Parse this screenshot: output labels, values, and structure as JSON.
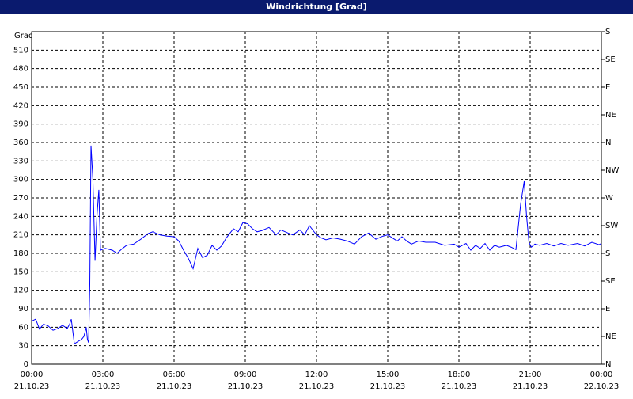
{
  "chart_data": {
    "type": "line",
    "title": "Windrichtung [Grad]",
    "y_label": "Grad",
    "x": [
      0,
      0.17,
      0.33,
      0.5,
      0.7,
      0.9,
      1.1,
      1.3,
      1.5,
      1.6,
      1.67,
      1.8,
      2.0,
      2.1,
      2.2,
      2.3,
      2.35,
      2.4,
      2.45,
      2.5,
      2.58,
      2.67,
      2.75,
      2.83,
      2.9,
      3.1,
      3.4,
      3.6,
      3.8,
      4.0,
      4.3,
      4.6,
      4.9,
      5.1,
      5.4,
      5.7,
      6.0,
      6.2,
      6.4,
      6.6,
      6.8,
      7.0,
      7.2,
      7.4,
      7.6,
      7.8,
      8.0,
      8.2,
      8.5,
      8.7,
      8.9,
      9.1,
      9.3,
      9.5,
      9.7,
      10.0,
      10.3,
      10.5,
      10.8,
      11.0,
      11.3,
      11.5,
      11.7,
      12.0,
      12.2,
      12.4,
      12.7,
      13.0,
      13.3,
      13.6,
      13.9,
      14.2,
      14.5,
      14.8,
      15.0,
      15.2,
      15.4,
      15.6,
      15.8,
      16.0,
      16.3,
      16.6,
      17.0,
      17.4,
      17.8,
      18.0,
      18.3,
      18.5,
      18.7,
      18.9,
      19.1,
      19.3,
      19.5,
      19.7,
      20.0,
      20.2,
      20.4,
      20.6,
      20.75,
      20.85,
      20.95,
      21.05,
      21.2,
      21.4,
      21.7,
      22.0,
      22.3,
      22.6,
      23.0,
      23.3,
      23.6,
      23.9,
      24
    ],
    "series": [
      {
        "name": "Windrichtung",
        "color": "#0000ff",
        "values": [
          70,
          73,
          57,
          65,
          62,
          55,
          58,
          63,
          58,
          65,
          73,
          33,
          38,
          40,
          45,
          60,
          40,
          35,
          130,
          355,
          300,
          168,
          240,
          283,
          185,
          188,
          185,
          180,
          187,
          193,
          195,
          203,
          212,
          215,
          210,
          208,
          207,
          200,
          185,
          172,
          155,
          188,
          173,
          177,
          193,
          185,
          192,
          205,
          220,
          215,
          230,
          228,
          220,
          215,
          217,
          222,
          210,
          218,
          213,
          210,
          218,
          210,
          225,
          210,
          205,
          202,
          205,
          203,
          200,
          195,
          207,
          213,
          203,
          208,
          210,
          205,
          200,
          207,
          200,
          195,
          200,
          198,
          198,
          193,
          195,
          190,
          196,
          185,
          193,
          188,
          196,
          185,
          193,
          190,
          193,
          190,
          186,
          260,
          297,
          240,
          198,
          190,
          195,
          193,
          196,
          192,
          196,
          193,
          196,
          192,
          198,
          194,
          196
        ]
      }
    ],
    "xlim": [
      0,
      24
    ],
    "xticks": [
      {
        "value": 0,
        "label": "00:00"
      },
      {
        "value": 3,
        "label": "03:00"
      },
      {
        "value": 6,
        "label": "06:00"
      },
      {
        "value": 9,
        "label": "09:00"
      },
      {
        "value": 12,
        "label": "12:00"
      },
      {
        "value": 15,
        "label": "15:00"
      },
      {
        "value": 18,
        "label": "18:00"
      },
      {
        "value": 21,
        "label": "21:00"
      },
      {
        "value": 24,
        "label": "00:00"
      }
    ],
    "xtick_dates": [
      "21.10.23",
      "21.10.23",
      "21.10.23",
      "21.10.23",
      "21.10.23",
      "21.10.23",
      "21.10.23",
      "21.10.23",
      "22.10.23"
    ],
    "ylim": [
      0,
      540
    ],
    "yticks": [
      0,
      30,
      60,
      90,
      120,
      150,
      180,
      210,
      240,
      270,
      300,
      330,
      360,
      390,
      420,
      450,
      480,
      510
    ],
    "y2lim": [
      0,
      540
    ],
    "y2ticks": [
      {
        "value": 0,
        "label": "N"
      },
      {
        "value": 45,
        "label": "NE"
      },
      {
        "value": 90,
        "label": "E"
      },
      {
        "value": 135,
        "label": "SE"
      },
      {
        "value": 180,
        "label": "S"
      },
      {
        "value": 225,
        "label": "SW"
      },
      {
        "value": 270,
        "label": "W"
      },
      {
        "value": 315,
        "label": "NW"
      },
      {
        "value": 360,
        "label": "N"
      },
      {
        "value": 405,
        "label": "NE"
      },
      {
        "value": 450,
        "label": "E"
      },
      {
        "value": 495,
        "label": "SE"
      },
      {
        "value": 540,
        "label": "S"
      }
    ],
    "grid": true
  }
}
